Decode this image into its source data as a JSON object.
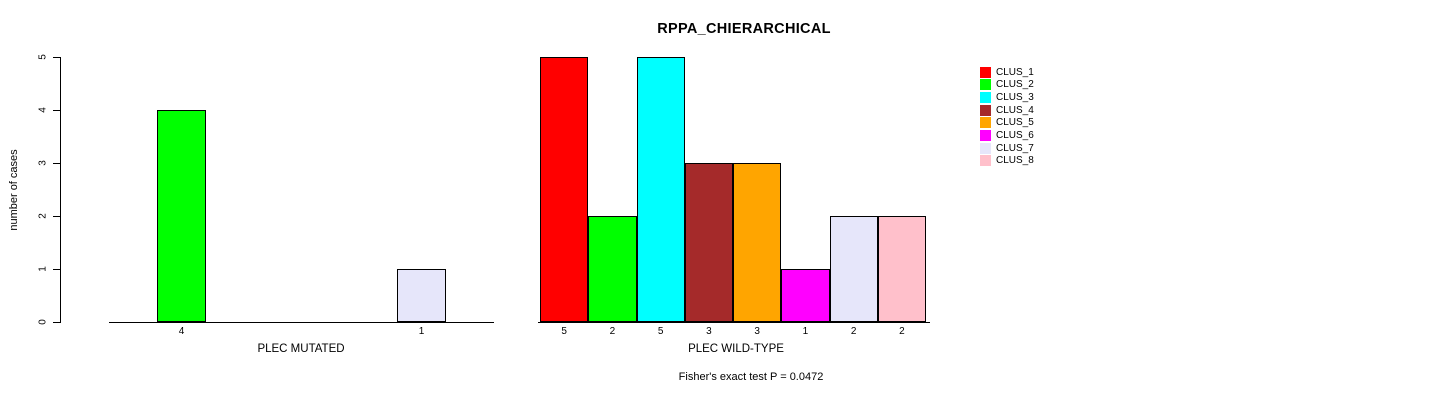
{
  "title": "RPPA_CHIERARCHICAL",
  "ylabel": "number of cases",
  "footer": "Fisher's exact test P = 0.0472",
  "y_ticks": [
    0,
    1,
    2,
    3,
    4,
    5
  ],
  "legend": {
    "position": "right",
    "items": [
      {
        "label": "CLUS_1",
        "color": "#FF0000"
      },
      {
        "label": "CLUS_2",
        "color": "#00FF00"
      },
      {
        "label": "CLUS_3",
        "color": "#00FFFF"
      },
      {
        "label": "CLUS_4",
        "color": "#A52A2A"
      },
      {
        "label": "CLUS_5",
        "color": "#FFA500"
      },
      {
        "label": "CLUS_6",
        "color": "#FF00FF"
      },
      {
        "label": "CLUS_7",
        "color": "#E6E6FA"
      },
      {
        "label": "CLUS_8",
        "color": "#FFC0CB"
      }
    ]
  },
  "chart_data": [
    {
      "type": "bar",
      "xlabel": "PLEC MUTATED",
      "categories": [
        "4",
        "1"
      ],
      "values": [
        4,
        1
      ],
      "colors": [
        "#00FF00",
        "#E6E6FA"
      ],
      "legend_refs": [
        "CLUS_2",
        "CLUS_7"
      ],
      "ylabel": "number of cases",
      "ylim": [
        0,
        5
      ],
      "grid": false
    },
    {
      "type": "bar",
      "xlabel": "PLEC WILD-TYPE",
      "categories": [
        "5",
        "2",
        "5",
        "3",
        "3",
        "1",
        "2",
        "2"
      ],
      "values": [
        5,
        2,
        5,
        3,
        3,
        1,
        2,
        2
      ],
      "colors": [
        "#FF0000",
        "#00FF00",
        "#00FFFF",
        "#A52A2A",
        "#FFA500",
        "#FF00FF",
        "#E6E6FA",
        "#FFC0CB"
      ],
      "legend_refs": [
        "CLUS_1",
        "CLUS_2",
        "CLUS_3",
        "CLUS_4",
        "CLUS_5",
        "CLUS_6",
        "CLUS_7",
        "CLUS_8"
      ],
      "ylim": [
        0,
        5
      ],
      "grid": false
    }
  ]
}
